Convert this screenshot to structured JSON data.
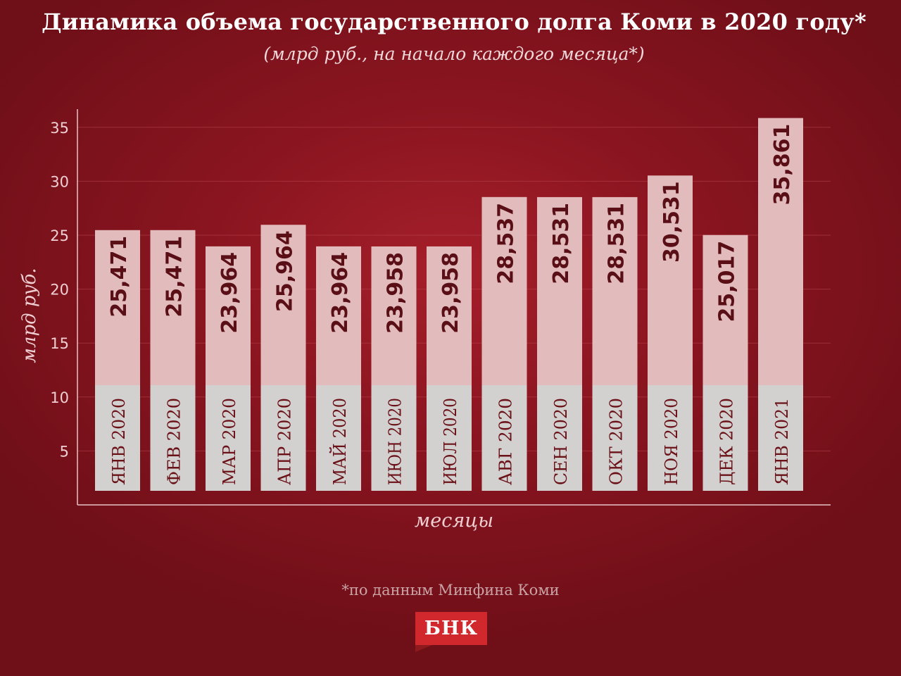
{
  "title": "Динамика объема государственного долга Коми в 2020 году*",
  "subtitle": "(млрд руб., на начало каждого месяца*)",
  "footnote": "*по данным Минфина Коми",
  "logo_text": "БНК",
  "colors": {
    "background": "#8a1520",
    "bar_fill": "#e2bcbd",
    "label_band": "#d3d0d0",
    "value_text": "#5a0f16",
    "category_text": "#6a1218",
    "axis_text": "#f0cfd2",
    "axis_line": "#e6c4c6",
    "logo": "#d0282c"
  },
  "chart_data": {
    "type": "bar",
    "title": "Динамика объема государственного долга Коми в 2020 году*",
    "subtitle": "(млрд руб., на начало каждого месяца*)",
    "xlabel": "месяцы",
    "ylabel": "млрд руб.",
    "ylim": [
      0,
      37
    ],
    "yticks": [
      5,
      10,
      15,
      20,
      25,
      30,
      35
    ],
    "grid": true,
    "categories": [
      "ЯНВ 2020",
      "ФЕВ 2020",
      "МАР 2020",
      "АПР 2020",
      "МАЙ 2020",
      "ИЮН 2020",
      "ИЮЛ 2020",
      "АВГ 2020",
      "СЕН 2020",
      "ОКТ 2020",
      "НОЯ 2020",
      "ДЕК 2020",
      "ЯНВ 2021"
    ],
    "values": [
      25.471,
      25.471,
      23.964,
      25.964,
      23.964,
      23.958,
      23.958,
      28.537,
      28.531,
      28.531,
      30.531,
      25.017,
      35.861
    ],
    "value_labels": [
      "25,471",
      "25,471",
      "23,964",
      "25,964",
      "23,964",
      "23,958",
      "23,958",
      "28,537",
      "28,531",
      "28,531",
      "30,531",
      "25,017",
      "35,861"
    ]
  }
}
